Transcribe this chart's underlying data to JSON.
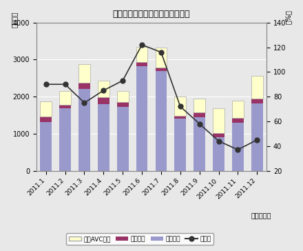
{
  "title": "民生用電子機器国内出荷金額推移",
  "xlabel": "（年・月）",
  "ylabel_left": "（億円）",
  "ylabel_right": "（%）",
  "months": [
    "2011.1",
    "2011.2",
    "2011.3",
    "2011.4",
    "2011.5",
    "2011.6",
    "2011.7",
    "2011.8",
    "2011.9",
    "2011.10",
    "2011.11",
    "2011.12"
  ],
  "eizo": [
    1310,
    1680,
    2200,
    1790,
    1730,
    2830,
    2700,
    1400,
    1440,
    900,
    1300,
    1820
  ],
  "onsei": [
    160,
    100,
    180,
    200,
    130,
    110,
    90,
    90,
    130,
    120,
    130,
    120
  ],
  "car_avc": [
    410,
    380,
    500,
    450,
    300,
    400,
    540,
    510,
    380,
    660,
    470,
    620
  ],
  "yoy": [
    90,
    90,
    75,
    85,
    93,
    122,
    116,
    72,
    58,
    44,
    37,
    45
  ],
  "bar_color_eizo": "#9999cc",
  "bar_color_onsei": "#993366",
  "bar_color_car": "#ffffcc",
  "line_color": "#333333",
  "ylim_left": [
    0,
    4000
  ],
  "ylim_right": [
    20,
    140
  ],
  "yticks_left": [
    0,
    1000,
    2000,
    3000,
    4000
  ],
  "yticks_right": [
    20,
    40,
    60,
    80,
    100,
    120,
    140
  ],
  "legend_labels": [
    "カーAVC機器",
    "音声機器",
    "映像機器",
    "前年比"
  ],
  "background_color": "#f0f0f0"
}
